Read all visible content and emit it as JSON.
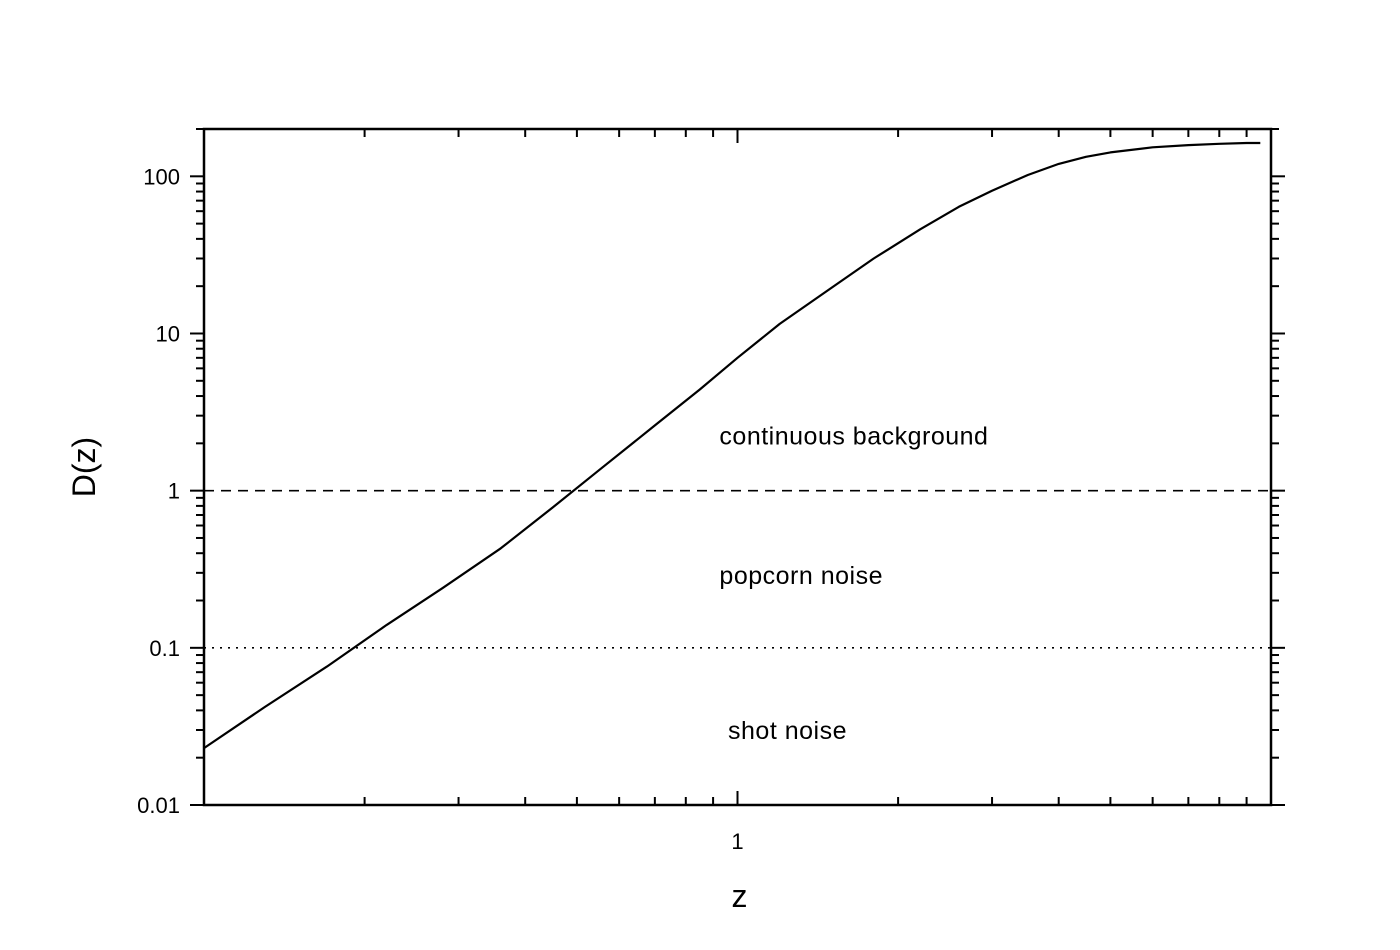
{
  "chart_data": {
    "type": "line",
    "xscale": "log",
    "yscale": "log",
    "xlabel": "z",
    "ylabel": "D(z)",
    "xlim": [
      0.1,
      10
    ],
    "ylim": [
      0.01,
      200
    ],
    "x_tick_labels": [
      {
        "value": 1,
        "label": "1"
      }
    ],
    "y_tick_labels": [
      {
        "value": 0.01,
        "label": "0.01"
      },
      {
        "value": 0.1,
        "label": "0.1"
      },
      {
        "value": 1,
        "label": "1"
      },
      {
        "value": 10,
        "label": "10"
      },
      {
        "value": 100,
        "label": "100"
      }
    ],
    "series": [
      {
        "style": "solid",
        "x": [
          0.1,
          0.13,
          0.17,
          0.22,
          0.28,
          0.36,
          0.45,
          0.55,
          0.7,
          0.85,
          1.0,
          1.2,
          1.5,
          1.8,
          2.2,
          2.6,
          3.0,
          3.5,
          4.0,
          4.5,
          5.0,
          6.0,
          7.0,
          8.0,
          9.0,
          9.55
        ],
        "y": [
          0.023,
          0.042,
          0.076,
          0.14,
          0.24,
          0.43,
          0.78,
          1.35,
          2.6,
          4.4,
          7.0,
          11.5,
          19.5,
          30,
          46,
          64,
          81,
          102,
          120,
          133,
          142,
          153,
          158,
          161,
          163,
          163
        ]
      }
    ],
    "reference_lines": [
      {
        "y": 1,
        "style": "dashed"
      },
      {
        "y": 0.1,
        "style": "dotted"
      }
    ],
    "annotations": [
      {
        "text": "continuous background",
        "x": 0.925,
        "y": 2.25
      },
      {
        "text": "popcorn noise",
        "x": 0.925,
        "y": 0.29
      },
      {
        "text": "shot noise",
        "x": 0.96,
        "y": 0.03
      }
    ],
    "grid": false,
    "legend": "none"
  }
}
